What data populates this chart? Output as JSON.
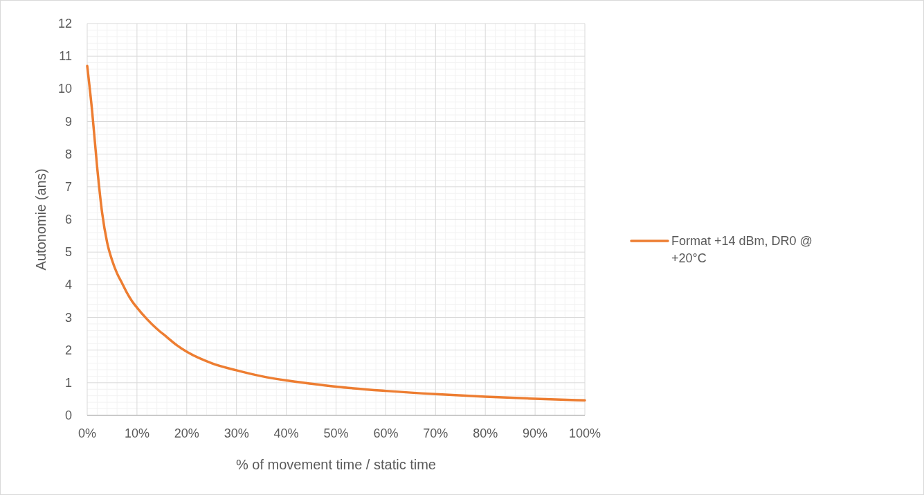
{
  "chart_data": {
    "type": "line",
    "xlabel": "% of movement time / static time",
    "ylabel": "Autonomie (ans)",
    "x": [
      0,
      1,
      2,
      3,
      4,
      5,
      6,
      7,
      8,
      9,
      10,
      12,
      14,
      16,
      18,
      20,
      25,
      30,
      35,
      40,
      45,
      50,
      60,
      70,
      80,
      90,
      100
    ],
    "series": [
      {
        "name": "Format +14 dBm, DR0 @ +20°C",
        "color": "#ed7d31",
        "values": [
          10.7,
          9.3,
          7.6,
          6.2,
          5.3,
          4.75,
          4.35,
          4.05,
          3.75,
          3.5,
          3.3,
          2.95,
          2.65,
          2.4,
          2.15,
          1.95,
          1.6,
          1.38,
          1.2,
          1.07,
          0.97,
          0.88,
          0.75,
          0.65,
          0.57,
          0.51,
          0.46
        ]
      }
    ],
    "xlim": [
      0,
      100
    ],
    "ylim": [
      0,
      12
    ],
    "xticks": [
      {
        "value": 0,
        "label": "0%"
      },
      {
        "value": 10,
        "label": "10%"
      },
      {
        "value": 20,
        "label": "20%"
      },
      {
        "value": 30,
        "label": "30%"
      },
      {
        "value": 40,
        "label": "40%"
      },
      {
        "value": 50,
        "label": "50%"
      },
      {
        "value": 60,
        "label": "60%"
      },
      {
        "value": 70,
        "label": "70%"
      },
      {
        "value": 80,
        "label": "80%"
      },
      {
        "value": 90,
        "label": "90%"
      },
      {
        "value": 100,
        "label": "100%"
      }
    ],
    "yticks": [
      0,
      1,
      2,
      3,
      4,
      5,
      6,
      7,
      8,
      9,
      10,
      11,
      12
    ],
    "grid": true,
    "legend": "right",
    "marker": "none",
    "line_style": "solid"
  }
}
